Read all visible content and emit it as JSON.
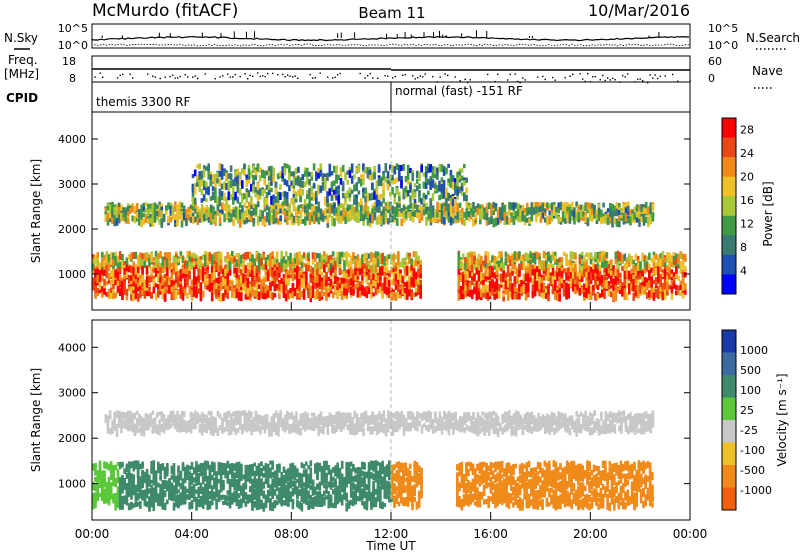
{
  "header": {
    "station": "McMurdo (fitACF)",
    "beam": "Beam 11",
    "date": "10/Mar/2016"
  },
  "top_panels": {
    "nsky_label": "N.Sky",
    "nsky_left_ticks": [
      "10^5",
      "10^0"
    ],
    "nsky_right_ticks": [
      "10^5",
      "10^0"
    ],
    "nsearch_label": "N.Search",
    "freq_label": "Freq.",
    "freq_unit": "[MHz]",
    "freq_ticks": [
      "18",
      "8"
    ],
    "nave_label": "Nave",
    "nave_ticks": [
      "60",
      "0"
    ],
    "cpid_label": "CPID",
    "cpid_segments": [
      {
        "label": "themis 3300 RF",
        "start_hour": 0,
        "end_hour": 12
      },
      {
        "label": "normal (fast) -151 RF",
        "start_hour": 12,
        "end_hour": 24
      }
    ]
  },
  "chart_data": [
    {
      "type": "heatmap",
      "title": "",
      "xlabel": "",
      "ylabel": "Slant Range [km]",
      "xlim": [
        0,
        24
      ],
      "ylim": [
        200,
        4600
      ],
      "y_ticks": [
        "1000",
        "2000",
        "3000",
        "4000"
      ],
      "colorbar": {
        "label": "Power [dB]",
        "ticks": [
          "4",
          "8",
          "12",
          "16",
          "20",
          "24",
          "28"
        ],
        "range": [
          0,
          30
        ],
        "colors": [
          "#0000ff",
          "#1f4fb0",
          "#3a7a70",
          "#3e9a44",
          "#a8c83a",
          "#f0c02a",
          "#f08a1a",
          "#e84818",
          "#ff0000"
        ]
      },
      "bands": [
        {
          "x_start": 0,
          "x_end": 23.8,
          "range_low": 500,
          "range_high": 1450,
          "value": 26
        },
        {
          "x_start": 0.5,
          "x_end": 22.5,
          "range_low": 2150,
          "range_high": 2550,
          "value": 14
        },
        {
          "x_start": 4,
          "x_end": 15,
          "range_low": 2600,
          "range_high": 3400,
          "value": 10
        }
      ]
    },
    {
      "type": "heatmap",
      "title": "",
      "xlabel": "Time UT",
      "ylabel": "Slant Range [km]",
      "xlim": [
        0,
        24
      ],
      "ylim": [
        200,
        4600
      ],
      "x_ticks": [
        "00:00",
        "04:00",
        "08:00",
        "12:00",
        "16:00",
        "20:00",
        "00:00"
      ],
      "y_ticks": [
        "1000",
        "2000",
        "3000",
        "4000"
      ],
      "colorbar": {
        "label": "Velocity [m s⁻¹]",
        "ticks": [
          "1000",
          "500",
          "100",
          "25",
          "-25",
          "-100",
          "-500",
          "-1000"
        ],
        "colors": [
          "#1a3aa8",
          "#3a6aa0",
          "#3e8a6a",
          "#5ac83a",
          "#c8c8c8",
          "#f0c02a",
          "#f08a1a",
          "#f06010",
          "#ff0000"
        ]
      },
      "bands": [
        {
          "x_start": 0,
          "x_end": 12,
          "range_low": 500,
          "range_high": 1450,
          "value": 150
        },
        {
          "x_start": 12,
          "x_end": 22.5,
          "range_low": 500,
          "range_high": 1450,
          "value": -200
        },
        {
          "x_start": 0.5,
          "x_end": 22.5,
          "range_low": 2150,
          "range_high": 2550,
          "value": 0
        }
      ]
    }
  ]
}
